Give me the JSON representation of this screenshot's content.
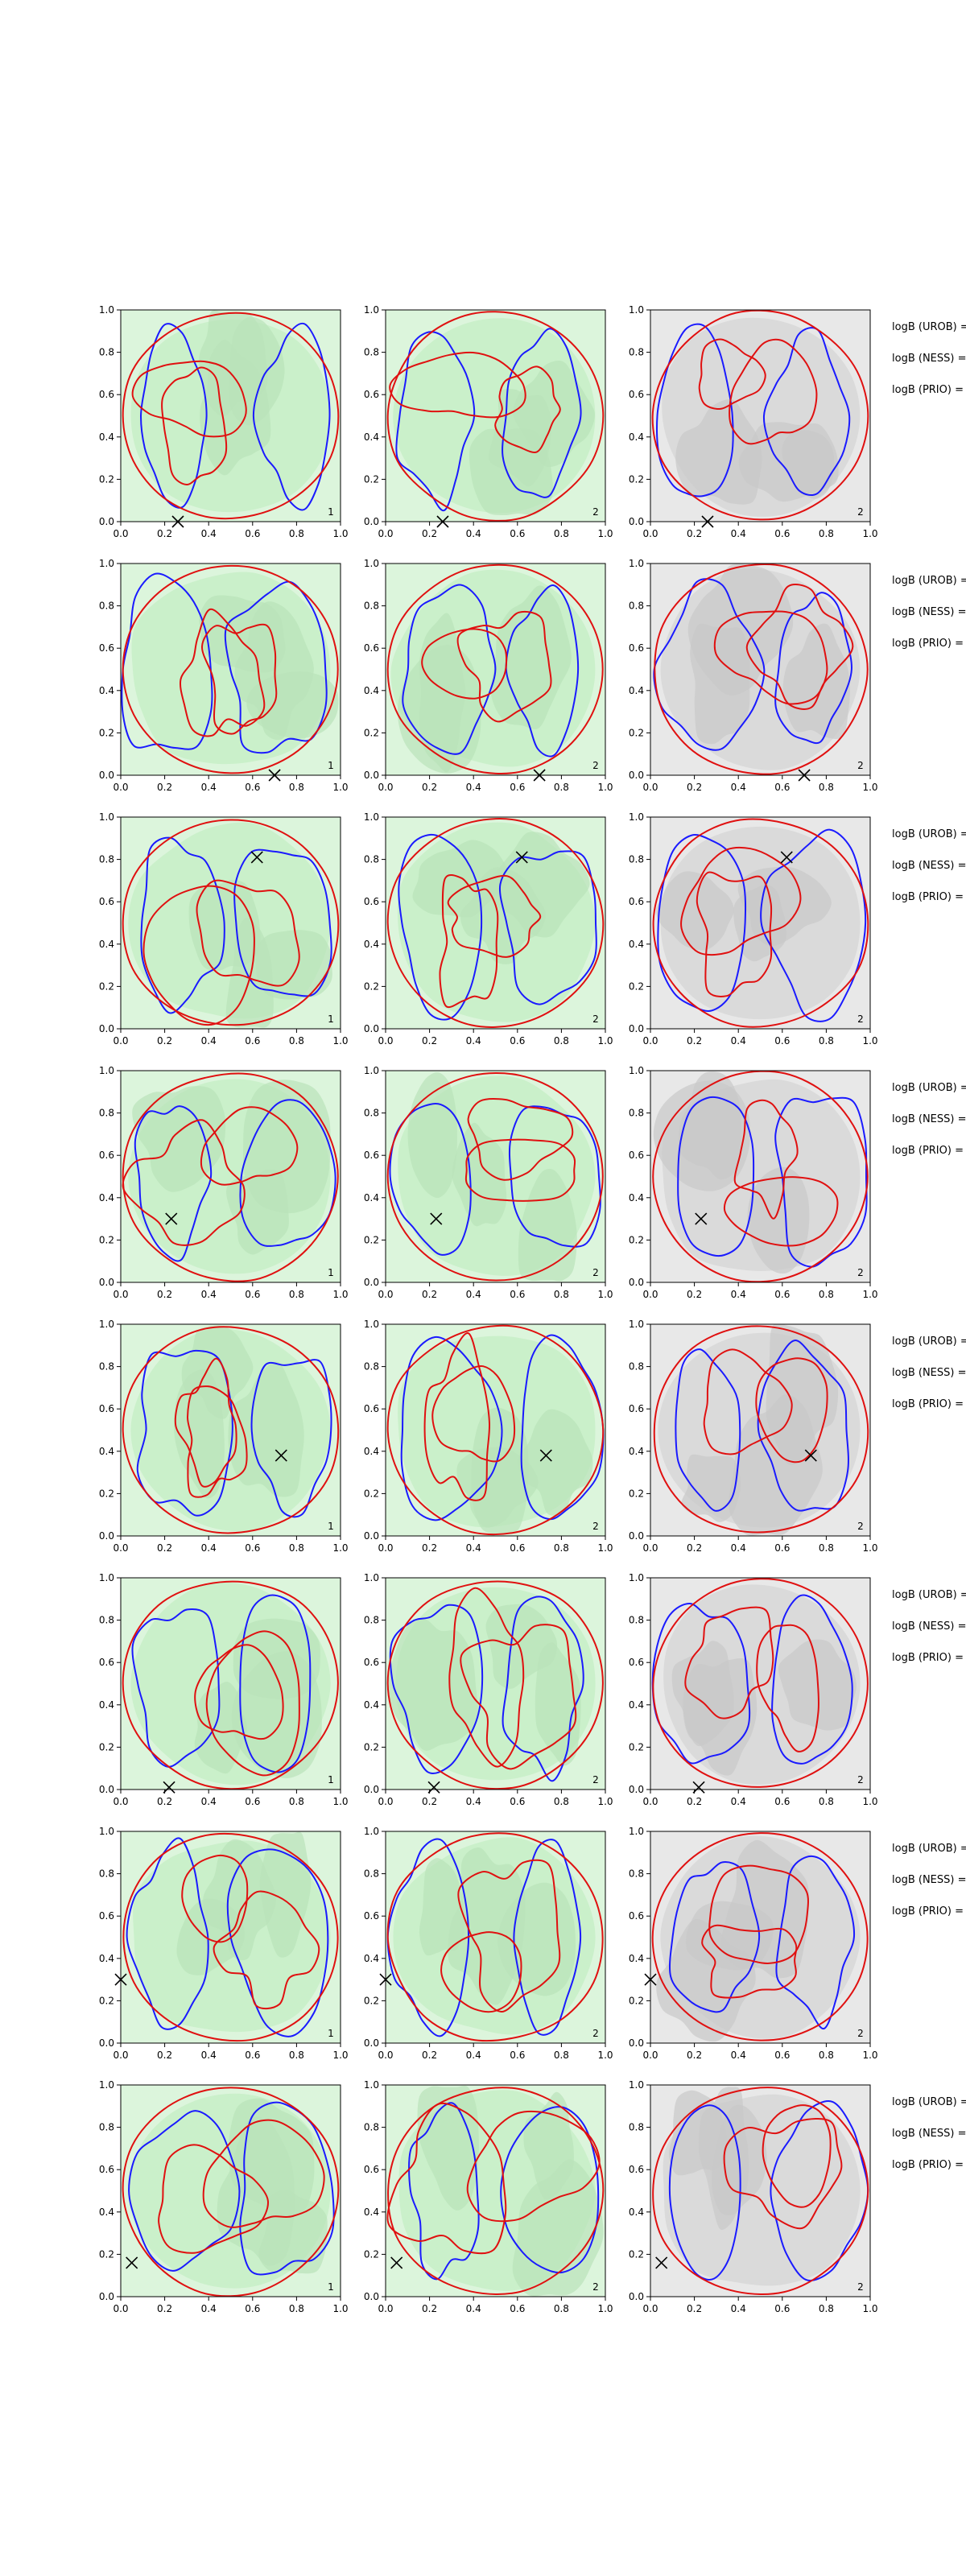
{
  "colors": {
    "green_fill": "#c8f0c8",
    "green_light": "#dcf5dc",
    "gray_fill": "#d8d8d8",
    "gray_light": "#e8e8e8",
    "contour_blue": "#1a1aff",
    "contour_red": "#e01010",
    "axis": "#000000"
  },
  "chart_data": {
    "type": "contour",
    "grid": {
      "rows": 8,
      "cols": 3
    },
    "xlim": [
      0.0,
      1.0
    ],
    "ylim": [
      0.0,
      1.0
    ],
    "xticks": [
      "0.0",
      "0.2",
      "0.4",
      "0.6",
      "0.8",
      "1.0"
    ],
    "yticks": [
      "0.0",
      "0.2",
      "0.4",
      "0.6",
      "0.8",
      "1.0"
    ],
    "column_labels": [
      "1",
      "2",
      "2"
    ],
    "column_fill": [
      "green",
      "green",
      "gray"
    ],
    "markers": [
      {
        "x": 0.26,
        "y": 0.0
      },
      {
        "x": 0.7,
        "y": 0.0
      },
      {
        "x": 0.62,
        "y": 0.81
      },
      {
        "x": 0.23,
        "y": 0.3
      },
      {
        "x": 0.73,
        "y": 0.38
      },
      {
        "x": 0.22,
        "y": 0.01
      },
      {
        "x": 0.0,
        "y": 0.3
      },
      {
        "x": 0.05,
        "y": 0.16
      }
    ],
    "side_labels": [
      "logB (UROB) =",
      "logB (NESS) =",
      "logB (PRIO) ="
    ]
  }
}
